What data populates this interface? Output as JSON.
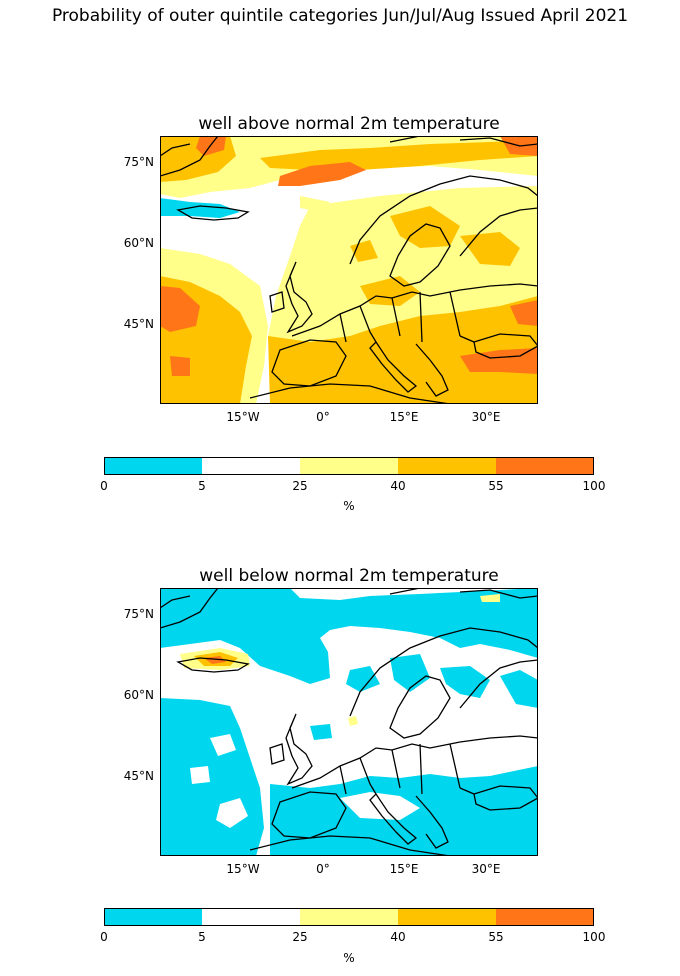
{
  "title": "Probability of outer quintile categories Jun/Jul/Aug Issued April 2021",
  "colors": {
    "c0_5": "#00d6ee",
    "c5_25": "#ffffff",
    "c25_40": "#ffff8a",
    "c40_55": "#ffc200",
    "c55_100": "#ff7518",
    "coast": "#000000"
  },
  "panels": [
    {
      "title": "well above normal 2m temperature",
      "lat_ticks": [
        "75°N",
        "60°N",
        "45°N"
      ],
      "lon_ticks": [
        "15°W",
        "0°",
        "15°E",
        "30°E"
      ]
    },
    {
      "title": "well below normal 2m temperature",
      "lat_ticks": [
        "75°N",
        "60°N",
        "45°N"
      ],
      "lon_ticks": [
        "15°W",
        "0°",
        "15°E",
        "30°E"
      ]
    }
  ],
  "colorbar": {
    "boundaries": [
      "0",
      "5",
      "25",
      "40",
      "55",
      "100"
    ],
    "unit": "%"
  }
}
